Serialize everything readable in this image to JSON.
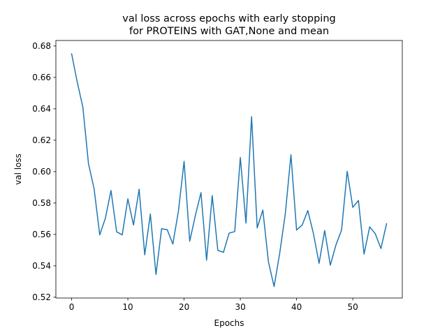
{
  "chart_data": {
    "type": "line",
    "title_lines": [
      "val loss across epochs with early stopping",
      "for PROTEINS with GAT,None  and mean"
    ],
    "xlabel": "Epochs",
    "ylabel": "val loss",
    "xlim": [
      -2.8,
      58.8
    ],
    "ylim": [
      0.5195,
      0.6835
    ],
    "xticks": [
      0,
      10,
      20,
      30,
      40,
      50
    ],
    "yticks": [
      0.52,
      0.54,
      0.56,
      0.58,
      0.6,
      0.62,
      0.64,
      0.66,
      0.68
    ],
    "ytick_labels": [
      "0.52",
      "0.54",
      "0.56",
      "0.58",
      "0.60",
      "0.62",
      "0.64",
      "0.66",
      "0.68"
    ],
    "grid": false,
    "legend": "none",
    "series": [
      {
        "color": "#1f77b4",
        "x": [
          0,
          1,
          2,
          3,
          4,
          5,
          6,
          7,
          8,
          9,
          10,
          11,
          12,
          13,
          14,
          15,
          16,
          17,
          18,
          19,
          20,
          21,
          22,
          23,
          24,
          25,
          26,
          27,
          28,
          29,
          30,
          31,
          32,
          33,
          34,
          35,
          36,
          37,
          38,
          39,
          40,
          41,
          42,
          43,
          44,
          45,
          46,
          47,
          48,
          49,
          50,
          51,
          52,
          53,
          54,
          55,
          56
        ],
        "y": [
          0.675,
          0.657,
          0.641,
          0.605,
          0.589,
          0.5597,
          0.5703,
          0.588,
          0.5617,
          0.5597,
          0.5826,
          0.566,
          0.5888,
          0.547,
          0.573,
          0.5345,
          0.5636,
          0.563,
          0.5539,
          0.575,
          0.6065,
          0.5557,
          0.572,
          0.5866,
          0.5436,
          0.5847,
          0.5498,
          0.5486,
          0.5608,
          0.5618,
          0.609,
          0.5672,
          0.635,
          0.5641,
          0.5755,
          0.5425,
          0.5268,
          0.548,
          0.5733,
          0.6107,
          0.5628,
          0.566,
          0.5752,
          0.5605,
          0.5416,
          0.5625,
          0.5404,
          0.5533,
          0.5628,
          0.6002,
          0.5772,
          0.5816,
          0.5475,
          0.5648,
          0.5604,
          0.551,
          0.5668
        ]
      }
    ]
  }
}
